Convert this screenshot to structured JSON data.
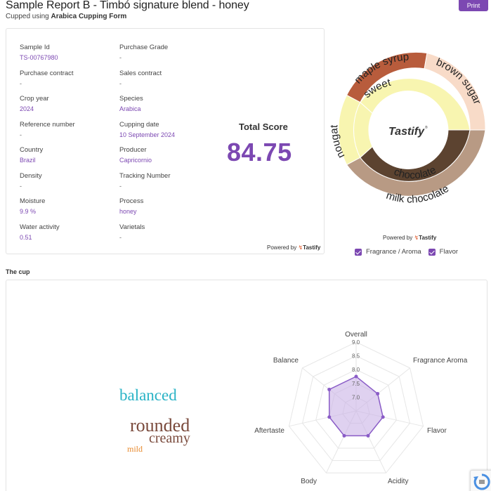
{
  "header": {
    "title": "Sample Report B - Timbó signature blend - honey",
    "subtitle_prefix": "Cupped using ",
    "subtitle_form": "Arabica Cupping Form",
    "print_label": "Print"
  },
  "info": {
    "fields": [
      {
        "label": "Sample Id",
        "value": "TS-00767980",
        "accent": true
      },
      {
        "label": "Purchase Grade",
        "value": "-",
        "accent": false
      },
      {
        "label": "Purchase contract",
        "value": "-",
        "accent": false
      },
      {
        "label": "Sales contract",
        "value": "-",
        "accent": false
      },
      {
        "label": "Crop year",
        "value": "2024",
        "accent": true
      },
      {
        "label": "Species",
        "value": "Arabica",
        "accent": true
      },
      {
        "label": "Reference number",
        "value": "-",
        "accent": false
      },
      {
        "label": "Cupping date",
        "value": "10 September 2024",
        "accent": true
      },
      {
        "label": "Country",
        "value": "Brazil",
        "accent": true
      },
      {
        "label": "Producer",
        "value": "Capricornio",
        "accent": true
      },
      {
        "label": "Density",
        "value": "-",
        "accent": false
      },
      {
        "label": "Tracking Number",
        "value": "-",
        "accent": false
      },
      {
        "label": "Moisture",
        "value": "9.9 %",
        "accent": true
      },
      {
        "label": "Process",
        "value": "honey",
        "accent": true
      },
      {
        "label": "Water activity",
        "value": "0.51",
        "accent": true
      },
      {
        "label": "Varietals",
        "value": "-",
        "accent": false
      }
    ],
    "total_label": "Total Score",
    "total_score": "84.75",
    "powered_prefix": "Powered by ",
    "powered_brand": "Tastify"
  },
  "wheel": {
    "center_label": "Tastify",
    "inner": [
      {
        "label": "sweet",
        "color": "#f8f5b0"
      },
      {
        "label": "chocolate",
        "color": "#5c4330"
      },
      {
        "label": "nougat",
        "color": "#f8f5b0"
      }
    ],
    "outer": [
      {
        "label": "maple syrup",
        "color": "#b85c3c"
      },
      {
        "label": "brown sugar",
        "color": "#f8dbc8"
      },
      {
        "label": "milk chocolate",
        "color": "#b89a84"
      },
      {
        "label": "nougat",
        "color": "#f8f5b0"
      }
    ],
    "powered_prefix": "Powered by ",
    "powered_brand": "Tastify",
    "legend": [
      {
        "label": "Fragrance / Aroma",
        "checked": true
      },
      {
        "label": "Flavor",
        "checked": true
      }
    ]
  },
  "cup": {
    "section_title": "The cup",
    "words": [
      {
        "text": "balanced",
        "color": "#2ab3c6"
      },
      {
        "text": "rounded",
        "color": "#7a4a3c"
      },
      {
        "text": "creamy",
        "color": "#7a4a3c"
      },
      {
        "text": "mild",
        "color": "#e88a2e"
      }
    ]
  },
  "chart_data": {
    "type": "radar",
    "categories": [
      "Overall",
      "Fragrance Aroma",
      "Flavor",
      "Acidity",
      "Body",
      "Aftertaste",
      "Balance"
    ],
    "values": [
      7.75,
      7.5,
      7.5,
      7.5,
      7.5,
      7.5,
      7.75
    ],
    "scale_ticks": [
      "7.0",
      "7.5",
      "8.0",
      "8.5",
      "9.0"
    ],
    "range": [
      6.5,
      9.0
    ],
    "fill_color": "#c9b3e6",
    "line_color": "#8a5cc7"
  }
}
